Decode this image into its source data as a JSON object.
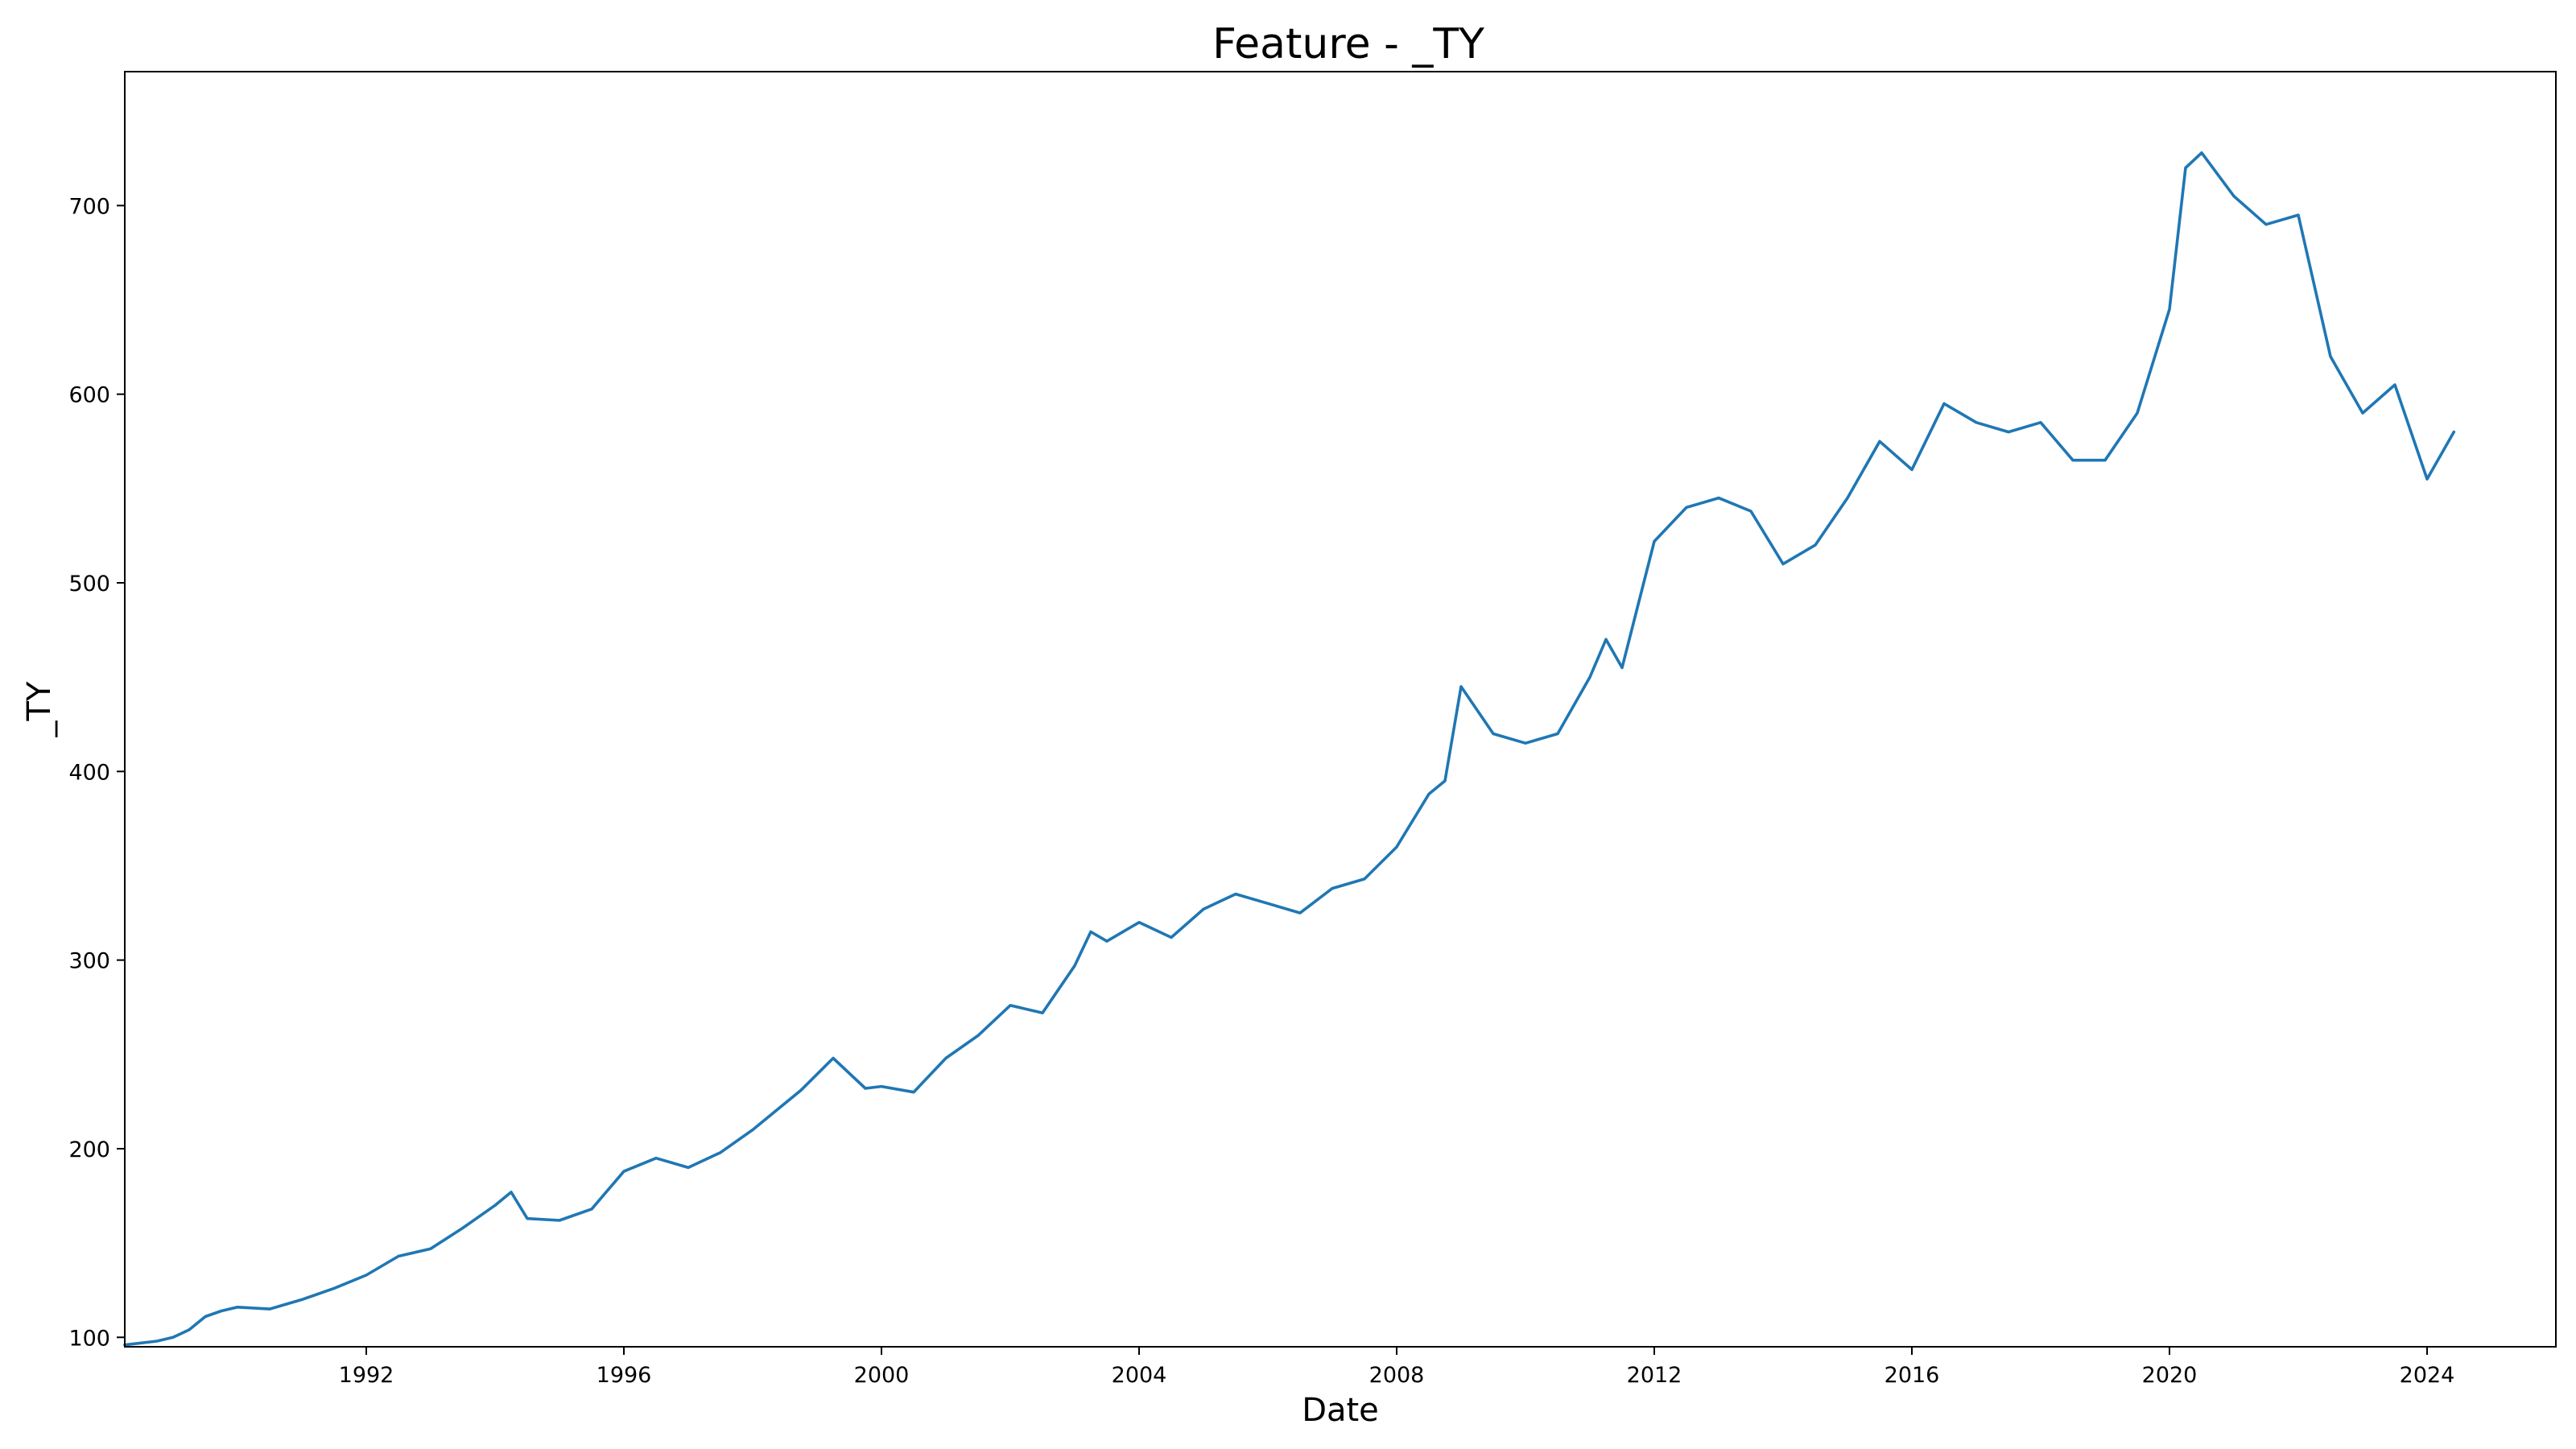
{
  "chart_data": {
    "type": "line",
    "title": "Feature - _TY",
    "xlabel": "Date",
    "ylabel": "_TY",
    "xlim": [
      "1988-04-01",
      "2026-01-01"
    ],
    "ylim": [
      95,
      771
    ],
    "x_ticks": [
      "1992",
      "1996",
      "2000",
      "2004",
      "2008",
      "2012",
      "2016",
      "2020",
      "2024"
    ],
    "y_ticks": [
      100,
      200,
      300,
      400,
      500,
      600,
      700
    ],
    "grid": false,
    "series_color": "#1f77b4",
    "series": [
      {
        "x": [
          "1988-04-01",
          "1988-10-01",
          "1989-01-01",
          "1989-04-01",
          "1989-07-01",
          "1989-10-01",
          "1990-01-01",
          "1990-07-01",
          "1991-01-01",
          "1991-07-01",
          "1992-01-01",
          "1992-07-01",
          "1993-01-01",
          "1993-07-01",
          "1994-01-01",
          "1994-04-01",
          "1994-07-01",
          "1995-01-01",
          "1995-07-01",
          "1996-01-01",
          "1996-07-01",
          "1997-01-01",
          "1997-07-01",
          "1998-01-01",
          "1998-07-01",
          "1998-10-01",
          "1999-04-01",
          "1999-10-01",
          "2000-01-01",
          "2000-07-01",
          "2001-01-01",
          "2001-07-01",
          "2002-01-01",
          "2002-07-01",
          "2003-01-01",
          "2003-04-01",
          "2003-07-01",
          "2004-01-01",
          "2004-07-01",
          "2005-01-01",
          "2005-07-01",
          "2006-01-01",
          "2006-07-01",
          "2007-01-01",
          "2007-07-01",
          "2008-01-01",
          "2008-07-01",
          "2008-10-01",
          "2009-01-01",
          "2009-07-01",
          "2010-01-01",
          "2010-07-01",
          "2011-01-01",
          "2011-04-01",
          "2011-07-01",
          "2012-01-01",
          "2012-07-01",
          "2013-01-01",
          "2013-07-01",
          "2014-01-01",
          "2014-07-01",
          "2015-01-01",
          "2015-07-01",
          "2016-01-01",
          "2016-07-01",
          "2017-01-01",
          "2017-07-01",
          "2018-01-01",
          "2018-07-01",
          "2019-01-01",
          "2019-07-01",
          "2020-01-01",
          "2020-04-01",
          "2020-07-01",
          "2021-01-01",
          "2021-07-01",
          "2022-01-01",
          "2022-07-01",
          "2023-01-01",
          "2023-07-01",
          "2024-01-01",
          "2024-06-01"
        ],
        "y": [
          96,
          98,
          100,
          104,
          111,
          114,
          116,
          115,
          120,
          126,
          133,
          143,
          147,
          158,
          170,
          177,
          163,
          162,
          168,
          188,
          195,
          190,
          198,
          210,
          224,
          231,
          248,
          232,
          233,
          230,
          248,
          260,
          276,
          272,
          297,
          315,
          310,
          320,
          312,
          327,
          335,
          330,
          325,
          338,
          343,
          360,
          388,
          395,
          445,
          420,
          415,
          420,
          450,
          470,
          455,
          522,
          540,
          545,
          538,
          510,
          520,
          545,
          575,
          560,
          595,
          585,
          580,
          585,
          565,
          565,
          590,
          645,
          720,
          728,
          705,
          690,
          695,
          620,
          590,
          605,
          555,
          580
        ]
      }
    ]
  }
}
